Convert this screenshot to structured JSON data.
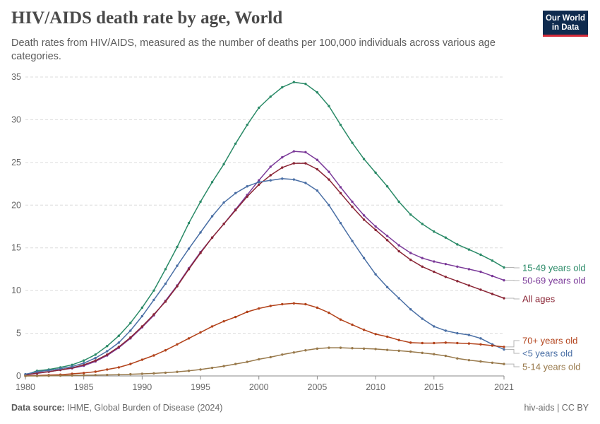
{
  "header": {
    "title": "HIV/AIDS death rate by age, World",
    "subtitle": "Death rates from HIV/AIDS, measured as the number of deaths per 100,000 individuals across various age categories.",
    "logo_line1": "Our World",
    "logo_line2": "in Data"
  },
  "footer": {
    "source_label": "Data source:",
    "source_text": "IHME, Global Burden of Disease (2024)",
    "right_text": "hiv-aids | CC BY"
  },
  "chart_data": {
    "type": "line",
    "xlim": [
      1980,
      2021
    ],
    "ylim": [
      0,
      35
    ],
    "x_ticks": [
      "1980",
      "1985",
      "1990",
      "1995",
      "2000",
      "2005",
      "2010",
      "2015",
      "2021"
    ],
    "x_tick_values": [
      1980,
      1985,
      1990,
      1995,
      2000,
      2005,
      2010,
      2015,
      2021
    ],
    "y_ticks": [
      "0",
      "5",
      "10",
      "15",
      "20",
      "25",
      "30",
      "35"
    ],
    "y_tick_values": [
      0,
      5,
      10,
      15,
      20,
      25,
      30,
      35
    ],
    "grid": "horizontal dashed",
    "legend": "right, labels at line ends",
    "x": [
      1980,
      1981,
      1982,
      1983,
      1984,
      1985,
      1986,
      1987,
      1988,
      1989,
      1990,
      1991,
      1992,
      1993,
      1994,
      1995,
      1996,
      1997,
      1998,
      1999,
      2000,
      2001,
      2002,
      2003,
      2004,
      2005,
      2006,
      2007,
      2008,
      2009,
      2010,
      2011,
      2012,
      2013,
      2014,
      2015,
      2016,
      2017,
      2018,
      2019,
      2020,
      2021
    ],
    "series": [
      {
        "name": "15-49 years old",
        "color": "#2a8a67",
        "values": [
          0.1,
          0.6,
          0.75,
          1.0,
          1.3,
          1.8,
          2.5,
          3.5,
          4.7,
          6.2,
          8.0,
          10.0,
          12.5,
          15.1,
          17.9,
          20.4,
          22.7,
          24.8,
          27.2,
          29.4,
          31.4,
          32.7,
          33.8,
          34.4,
          34.2,
          33.2,
          31.6,
          29.4,
          27.3,
          25.4,
          23.8,
          22.2,
          20.4,
          18.9,
          17.8,
          16.9,
          16.2,
          15.4,
          14.8,
          14.2,
          13.5,
          12.7
        ]
      },
      {
        "name": "50-69 years old",
        "color": "#7b3a99",
        "values": [
          0.1,
          0.3,
          0.5,
          0.7,
          0.9,
          1.2,
          1.7,
          2.4,
          3.3,
          4.4,
          5.7,
          7.1,
          8.8,
          10.6,
          12.6,
          14.5,
          16.2,
          17.8,
          19.5,
          21.2,
          22.9,
          24.5,
          25.6,
          26.3,
          26.2,
          25.3,
          23.9,
          22.1,
          20.4,
          18.8,
          17.5,
          16.4,
          15.3,
          14.4,
          13.8,
          13.4,
          13.1,
          12.8,
          12.5,
          12.2,
          11.7,
          11.2
        ]
      },
      {
        "name": "All ages",
        "color": "#8a2535",
        "values": [
          0.1,
          0.35,
          0.5,
          0.7,
          0.95,
          1.3,
          1.8,
          2.5,
          3.4,
          4.5,
          5.8,
          7.2,
          8.7,
          10.5,
          12.5,
          14.4,
          16.2,
          17.8,
          19.4,
          21.0,
          22.4,
          23.5,
          24.4,
          24.9,
          24.9,
          24.2,
          23.0,
          21.4,
          19.8,
          18.3,
          17.1,
          15.9,
          14.6,
          13.6,
          12.8,
          12.2,
          11.6,
          11.1,
          10.6,
          10.1,
          9.6,
          9.1
        ]
      },
      {
        "name": "<5 years old",
        "color": "#4a6fa5",
        "values": [
          0.2,
          0.5,
          0.65,
          0.85,
          1.1,
          1.5,
          2.1,
          2.9,
          3.9,
          5.3,
          7.0,
          8.9,
          10.8,
          12.9,
          14.9,
          16.8,
          18.7,
          20.3,
          21.4,
          22.2,
          22.7,
          22.9,
          23.1,
          23.0,
          22.6,
          21.7,
          20.0,
          17.9,
          15.8,
          13.8,
          11.9,
          10.4,
          9.1,
          7.8,
          6.7,
          5.8,
          5.3,
          5.0,
          4.8,
          4.4,
          3.7,
          3.1
        ]
      },
      {
        "name": "70+ years old",
        "color": "#b2421a",
        "values": [
          0.0,
          0.05,
          0.1,
          0.15,
          0.25,
          0.35,
          0.5,
          0.75,
          1.0,
          1.4,
          1.9,
          2.4,
          3.0,
          3.7,
          4.4,
          5.1,
          5.8,
          6.4,
          6.9,
          7.5,
          7.9,
          8.2,
          8.4,
          8.5,
          8.4,
          8.0,
          7.4,
          6.6,
          6.0,
          5.4,
          4.9,
          4.6,
          4.2,
          3.9,
          3.85,
          3.85,
          3.9,
          3.85,
          3.8,
          3.7,
          3.55,
          3.4
        ]
      },
      {
        "name": "5-14 years old",
        "color": "#98794b",
        "values": [
          0.0,
          0.0,
          0.02,
          0.04,
          0.06,
          0.08,
          0.1,
          0.12,
          0.15,
          0.2,
          0.25,
          0.3,
          0.38,
          0.48,
          0.6,
          0.75,
          0.95,
          1.15,
          1.4,
          1.65,
          1.95,
          2.2,
          2.5,
          2.75,
          3.0,
          3.2,
          3.3,
          3.3,
          3.25,
          3.2,
          3.15,
          3.05,
          2.95,
          2.85,
          2.7,
          2.55,
          2.35,
          2.05,
          1.85,
          1.7,
          1.55,
          1.4
        ]
      }
    ]
  }
}
